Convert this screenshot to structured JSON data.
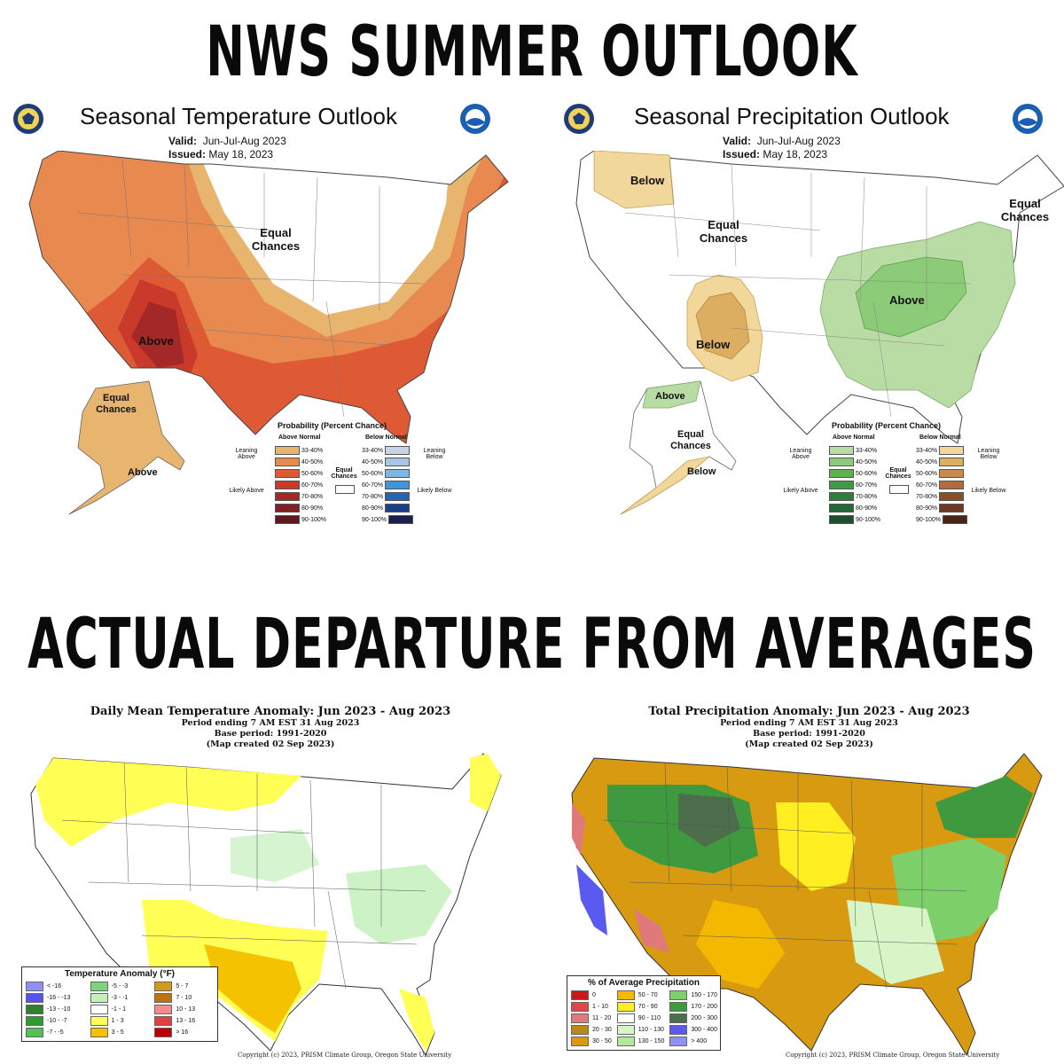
{
  "headlines": {
    "top": "NWS SUMMER OUTLOOK",
    "bottom": "ACTUAL DEPARTURE FROM AVERAGES"
  },
  "temp_outlook": {
    "title": "Seasonal Temperature Outlook",
    "valid_label": "Valid:",
    "valid_value": "Jun-Jul-Aug 2023",
    "issued_label": "Issued:",
    "issued_value": "May 18, 2023",
    "labels": {
      "equal_chances": "Equal Chances",
      "above": "Above",
      "ak_equal": "Equal Chances",
      "ak_above": "Above"
    },
    "legend": {
      "title": "Probability (Percent Chance)",
      "above_header": "Above Normal",
      "below_header": "Below Normal",
      "leaning_above": "Leaning Above",
      "likely_above": "Likely Above",
      "leaning_below": "Leaning Below",
      "likely_below": "Likely Below",
      "equal_chances": "Equal Chances",
      "ranges": [
        "33-40%",
        "40-50%",
        "50-60%",
        "60-70%",
        "70-80%",
        "80-90%",
        "90-100%"
      ],
      "above_colors": [
        "#e8b56f",
        "#e8894f",
        "#dd5a35",
        "#c93a2b",
        "#a52828",
        "#802026",
        "#5c1a1f"
      ],
      "below_colors": [
        "#c8d3e6",
        "#a8c6e4",
        "#7fb5e2",
        "#3b96dd",
        "#2166b8",
        "#1c3f8a",
        "#1a1f4e"
      ]
    }
  },
  "precip_outlook": {
    "title": "Seasonal Precipitation Outlook",
    "valid_label": "Valid:",
    "valid_value": "Jun-Jul-Aug 2023",
    "issued_label": "Issued:",
    "issued_value": "May 18, 2023",
    "labels": {
      "below_nw": "Below",
      "equal_chances": "Equal Chances",
      "equal_ne": "Equal Chances",
      "above": "Above",
      "below_sw": "Below",
      "ak_above": "Above",
      "ak_equal": "Equal Chances",
      "ak_below": "Below"
    },
    "legend": {
      "title": "Probability (Percent Chance)",
      "above_header": "Above Normal",
      "below_header": "Below Normal",
      "leaning_above": "Leaning Above",
      "likely_above": "Likely Above",
      "leaning_below": "Leaning Below",
      "likely_below": "Likely Below",
      "equal_chances": "Equal Chances",
      "ranges": [
        "33-40%",
        "40-50%",
        "50-60%",
        "60-70%",
        "70-80%",
        "80-90%",
        "90-100%"
      ],
      "above_colors": [
        "#b8dca4",
        "#8ccb78",
        "#5fb04e",
        "#3f9a45",
        "#2d7f3c",
        "#23683a",
        "#1c4f2d"
      ],
      "below_colors": [
        "#f1d79a",
        "#dcae62",
        "#c88a4d",
        "#b26b3f",
        "#8f4d2c",
        "#6f3a22",
        "#4a2517"
      ]
    }
  },
  "temp_anomaly": {
    "title": "Daily Mean Temperature Anomaly: Jun 2023 - Aug 2023",
    "period": "Period ending 7 AM EST 31 Aug 2023",
    "base": "Base period: 1991-2020",
    "created": "(Map created 02 Sep 2023)",
    "legend_title": "Temperature Anomaly (°F)",
    "legend": [
      {
        "label": "< -16",
        "color": "#8f8ff5"
      },
      {
        "label": "-5 - -3",
        "color": "#7ed37e"
      },
      {
        "label": "5 - 7",
        "color": "#d49a16"
      },
      {
        "label": "-16 - -13",
        "color": "#5555ee"
      },
      {
        "label": "-3 - -1",
        "color": "#c4f0bc"
      },
      {
        "label": "7 - 10",
        "color": "#c07410"
      },
      {
        "label": "-13 - -10",
        "color": "#2f7f2f"
      },
      {
        "label": "-1 - 1",
        "color": "#ffffff"
      },
      {
        "label": "10 - 13",
        "color": "#ef8c8c"
      },
      {
        "label": "-10 - -7",
        "color": "#2f9a2f"
      },
      {
        "label": "1 - 3",
        "color": "#ffff55"
      },
      {
        "label": "13 - 16",
        "color": "#e04040"
      },
      {
        "label": "-7 - -5",
        "color": "#55c055"
      },
      {
        "label": "3 - 5",
        "color": "#f5c200"
      },
      {
        "label": "> 16",
        "color": "#c00000"
      }
    ],
    "copyright": "Copyright (c) 2023, PRISM Climate Group, Oregon State University"
  },
  "precip_anomaly": {
    "title": "Total Precipitation Anomaly: Jun 2023 - Aug 2023",
    "period": "Period ending 7 AM EST 31 Aug 2023",
    "base": "Base period: 1991-2020",
    "created": "(Map created 02 Sep 2023)",
    "legend_title": "% of Average Precipitation",
    "legend": [
      {
        "label": "0",
        "color": "#c81818"
      },
      {
        "label": "50 - 70",
        "color": "#f5b800"
      },
      {
        "label": "150 - 170",
        "color": "#7dcf6a"
      },
      {
        "label": "1 - 10",
        "color": "#e04646"
      },
      {
        "label": "70 - 90",
        "color": "#ffef22"
      },
      {
        "label": "170 - 200",
        "color": "#3f9a3f"
      },
      {
        "label": "11 - 20",
        "color": "#e07a7a"
      },
      {
        "label": "90 - 110",
        "color": "#ffffff"
      },
      {
        "label": "200 - 300",
        "color": "#4c6e4c"
      },
      {
        "label": "20 - 30",
        "color": "#b88a16"
      },
      {
        "label": "110 - 130",
        "color": "#d8f5c8"
      },
      {
        "label": "300 - 400",
        "color": "#5a5af0"
      },
      {
        "label": "30 - 50",
        "color": "#d89a10"
      },
      {
        "label": "130 - 150",
        "color": "#b2e89a"
      },
      {
        "label": "> 400",
        "color": "#9090f5"
      }
    ],
    "copyright": "Copyright (c) 2023, PRISM Climate Group, Oregon State University"
  }
}
